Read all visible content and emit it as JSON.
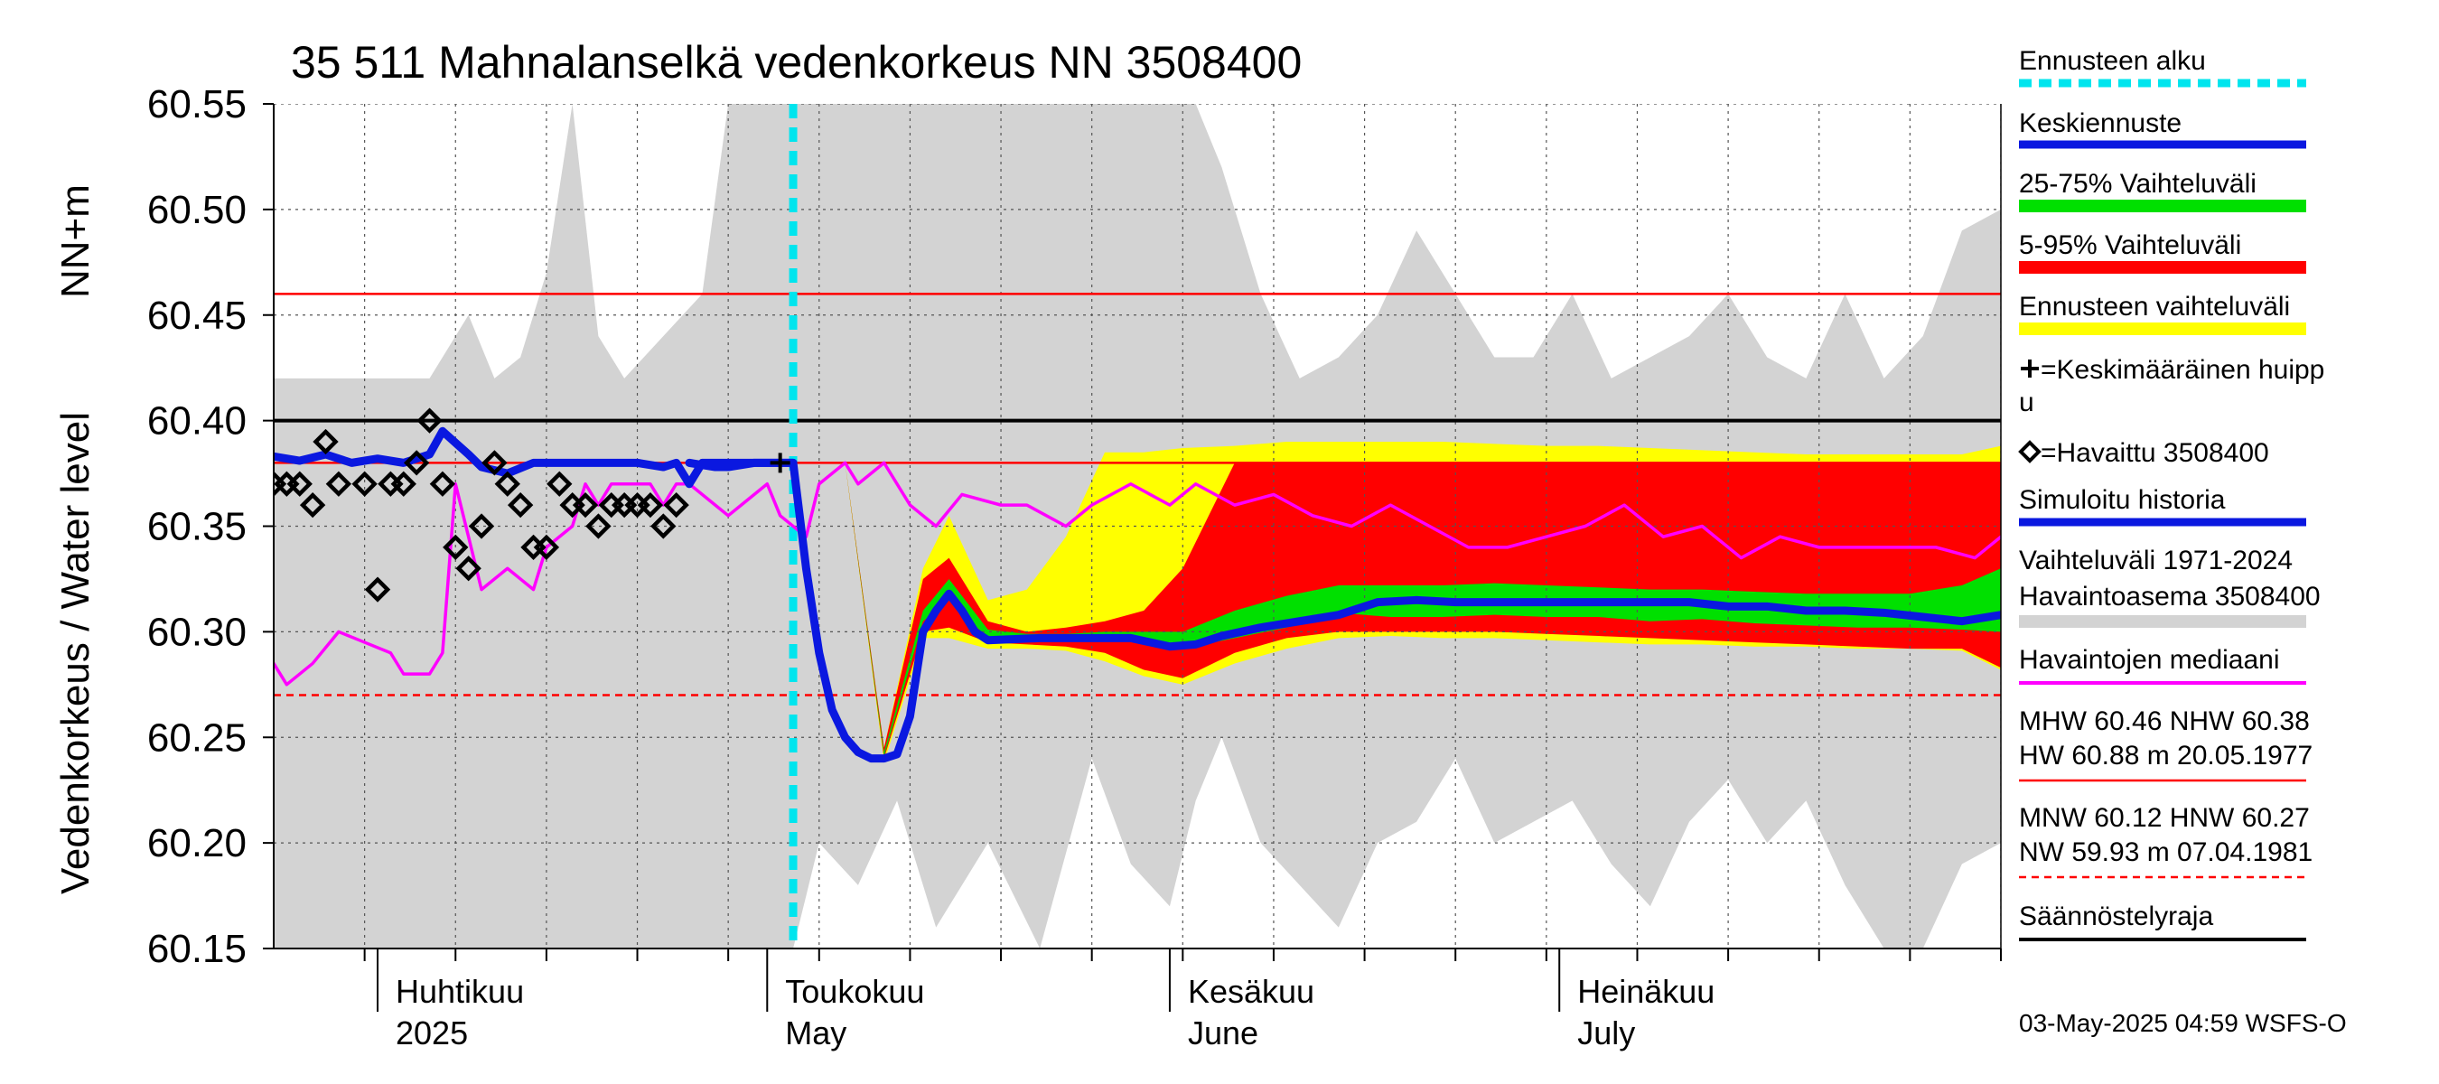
{
  "chart_data": {
    "type": "line",
    "title": "35 511 Mahnalanselkä vedenkorkeus NN 3508400",
    "ylabel_top": "NN+m",
    "ylabel": "Vedenkorkeus / Water level",
    "ylim": [
      60.15,
      60.55
    ],
    "yticks": [
      "60.15",
      "60.20",
      "60.25",
      "60.30",
      "60.35",
      "60.40",
      "60.45",
      "60.50",
      "60.55"
    ],
    "grid": true,
    "x_start": "2025-03-24",
    "x_end": "2025-08-04",
    "x_ticks_weekly": [
      "2025-03-31",
      "2025-04-07",
      "2025-04-14",
      "2025-04-21",
      "2025-04-28",
      "2025-05-05",
      "2025-05-12",
      "2025-05-19",
      "2025-05-26",
      "2025-06-02",
      "2025-06-09",
      "2025-06-16",
      "2025-06-23",
      "2025-06-30",
      "2025-07-07",
      "2025-07-14",
      "2025-07-21",
      "2025-07-28",
      "2025-08-04"
    ],
    "month_labels": [
      {
        "date": "2025-04-01",
        "fi": "Huhtikuu",
        "en": "2025"
      },
      {
        "date": "2025-05-01",
        "fi": "Toukokuu",
        "en": "May"
      },
      {
        "date": "2025-06-01",
        "fi": "Kesäkuu",
        "en": "June"
      },
      {
        "date": "2025-07-01",
        "fi": "Heinäkuu",
        "en": "July"
      }
    ],
    "forecast_start": "2025-05-03",
    "reference_lines": [
      {
        "name": "MHW",
        "value": 60.46,
        "style": "red-solid"
      },
      {
        "name": "NHW",
        "value": 60.38,
        "style": "red-solid"
      },
      {
        "name": "HNW",
        "value": 60.27,
        "style": "red-dashed"
      },
      {
        "name": "Säännöstelyraja",
        "value": 60.4,
        "style": "black-solid"
      }
    ],
    "historical_range": {
      "x": [
        "2025-03-24",
        "2025-03-31",
        "2025-04-05",
        "2025-04-08",
        "2025-04-10",
        "2025-04-12",
        "2025-04-14",
        "2025-04-16",
        "2025-04-18",
        "2025-04-20",
        "2025-04-23",
        "2025-04-26",
        "2025-04-28",
        "2025-05-01",
        "2025-05-03",
        "2025-05-05",
        "2025-05-08",
        "2025-05-11",
        "2025-05-14",
        "2025-05-18",
        "2025-05-22",
        "2025-05-26",
        "2025-05-29",
        "2025-06-01",
        "2025-06-03",
        "2025-06-05",
        "2025-06-08",
        "2025-06-11",
        "2025-06-14",
        "2025-06-17",
        "2025-06-20",
        "2025-06-23",
        "2025-06-26",
        "2025-06-29",
        "2025-07-02",
        "2025-07-05",
        "2025-07-08",
        "2025-07-11",
        "2025-07-14",
        "2025-07-17",
        "2025-07-20",
        "2025-07-23",
        "2025-07-26",
        "2025-07-29",
        "2025-08-01",
        "2025-08-04"
      ],
      "high": [
        60.42,
        60.42,
        60.42,
        60.45,
        60.42,
        60.43,
        60.47,
        60.55,
        60.44,
        60.42,
        60.44,
        60.46,
        60.55,
        60.55,
        60.55,
        60.55,
        60.55,
        60.55,
        60.55,
        60.55,
        60.55,
        60.55,
        60.55,
        60.55,
        60.55,
        60.52,
        60.46,
        60.42,
        60.43,
        60.45,
        60.49,
        60.46,
        60.43,
        60.43,
        60.46,
        60.42,
        60.43,
        60.44,
        60.46,
        60.43,
        60.42,
        60.46,
        60.42,
        60.44,
        60.49,
        60.5
      ],
      "low": [
        60.15,
        60.15,
        60.15,
        60.15,
        60.15,
        60.15,
        60.15,
        60.15,
        60.15,
        60.15,
        60.15,
        60.15,
        60.15,
        60.15,
        60.15,
        60.2,
        60.18,
        60.22,
        60.16,
        60.2,
        60.15,
        60.24,
        60.19,
        60.17,
        60.22,
        60.25,
        60.2,
        60.18,
        60.16,
        60.2,
        60.21,
        60.24,
        60.2,
        60.21,
        60.22,
        60.19,
        60.17,
        60.21,
        60.23,
        60.2,
        60.22,
        60.18,
        60.15,
        60.15,
        60.19,
        60.2
      ]
    },
    "forecast_range": {
      "x": [
        "2025-05-03",
        "2025-05-07",
        "2025-05-10",
        "2025-05-13",
        "2025-05-15",
        "2025-05-18",
        "2025-05-21",
        "2025-05-24",
        "2025-05-27",
        "2025-05-30",
        "2025-06-02",
        "2025-06-06",
        "2025-06-10",
        "2025-06-14",
        "2025-06-18",
        "2025-06-22",
        "2025-06-26",
        "2025-06-30",
        "2025-07-04",
        "2025-07-08",
        "2025-07-12",
        "2025-07-16",
        "2025-07-20",
        "2025-07-24",
        "2025-07-28",
        "2025-08-01",
        "2025-08-04"
      ],
      "p0_high": [
        60.38,
        60.38,
        60.245,
        60.33,
        60.355,
        60.315,
        60.32,
        60.345,
        60.385,
        60.385,
        60.387,
        60.388,
        60.39,
        60.39,
        60.39,
        60.39,
        60.389,
        60.388,
        60.388,
        60.387,
        60.386,
        60.385,
        60.384,
        60.384,
        60.384,
        60.384,
        60.388
      ],
      "p5_high": [
        60.38,
        60.38,
        60.245,
        60.325,
        60.335,
        60.305,
        60.3,
        60.302,
        60.305,
        60.31,
        60.33,
        60.38,
        60.38,
        60.38,
        60.38,
        60.38,
        60.38,
        60.38,
        60.38,
        60.38,
        60.38,
        60.38,
        60.38,
        60.38,
        60.38,
        60.38,
        60.38
      ],
      "p25_high": [
        60.38,
        60.38,
        60.243,
        60.31,
        60.325,
        60.301,
        60.299,
        60.299,
        60.3,
        60.3,
        60.3,
        60.31,
        60.317,
        60.322,
        60.322,
        60.322,
        60.323,
        60.322,
        60.321,
        60.32,
        60.32,
        60.319,
        60.318,
        60.318,
        60.318,
        60.322,
        60.33
      ],
      "p25_low": [
        60.38,
        60.38,
        60.241,
        60.305,
        60.315,
        60.297,
        60.296,
        60.296,
        60.296,
        60.295,
        60.292,
        60.297,
        60.302,
        60.309,
        60.307,
        60.307,
        60.308,
        60.307,
        60.307,
        60.305,
        60.306,
        60.304,
        60.303,
        60.302,
        60.302,
        60.301,
        60.3
      ],
      "p5_low": [
        60.38,
        60.38,
        60.24,
        60.3,
        60.302,
        60.295,
        60.294,
        60.293,
        60.29,
        60.282,
        60.278,
        60.29,
        60.297,
        60.3,
        60.3,
        60.3,
        60.3,
        60.299,
        60.298,
        60.297,
        60.296,
        60.295,
        60.294,
        60.293,
        60.292,
        60.292,
        60.283
      ],
      "p0_low": [
        60.38,
        60.38,
        60.238,
        60.297,
        60.297,
        60.292,
        60.292,
        60.291,
        60.286,
        60.279,
        60.275,
        60.285,
        60.292,
        60.297,
        60.298,
        60.297,
        60.297,
        60.296,
        60.295,
        60.294,
        60.294,
        60.293,
        60.293,
        60.292,
        60.292,
        60.291,
        60.282
      ]
    },
    "median_forecast": {
      "x": [
        "2025-04-25",
        "2025-04-27",
        "2025-04-28",
        "2025-04-30",
        "2025-05-02",
        "2025-05-03",
        "2025-05-04",
        "2025-05-05",
        "2025-05-06",
        "2025-05-07",
        "2025-05-08",
        "2025-05-09",
        "2025-05-10",
        "2025-05-11",
        "2025-05-12",
        "2025-05-13",
        "2025-05-14",
        "2025-05-15",
        "2025-05-16",
        "2025-05-17",
        "2025-05-18",
        "2025-05-22",
        "2025-05-26",
        "2025-05-29",
        "2025-06-01",
        "2025-06-03",
        "2025-06-05",
        "2025-06-08",
        "2025-06-11",
        "2025-06-14",
        "2025-06-17",
        "2025-06-20",
        "2025-06-23",
        "2025-06-26",
        "2025-06-29",
        "2025-07-02",
        "2025-07-05",
        "2025-07-08",
        "2025-07-11",
        "2025-07-14",
        "2025-07-17",
        "2025-07-20",
        "2025-07-23",
        "2025-07-26",
        "2025-07-29",
        "2025-08-01",
        "2025-08-04"
      ],
      "y": [
        60.38,
        60.378,
        60.378,
        60.38,
        60.38,
        60.38,
        60.33,
        60.29,
        60.263,
        60.25,
        60.243,
        60.24,
        60.24,
        60.242,
        60.26,
        60.3,
        60.31,
        60.318,
        60.31,
        60.3,
        60.296,
        60.297,
        60.297,
        60.297,
        60.293,
        60.294,
        60.298,
        60.302,
        60.305,
        60.308,
        60.314,
        60.315,
        60.314,
        60.314,
        60.314,
        60.314,
        60.314,
        60.314,
        60.314,
        60.312,
        60.312,
        60.31,
        60.31,
        60.309,
        60.307,
        60.305,
        60.308
      ]
    },
    "simulated_history": {
      "x": [
        "2025-03-24",
        "2025-03-26",
        "2025-03-28",
        "2025-03-30",
        "2025-04-01",
        "2025-04-03",
        "2025-04-05",
        "2025-04-06",
        "2025-04-08",
        "2025-04-09",
        "2025-04-11",
        "2025-04-13",
        "2025-04-15",
        "2025-04-17",
        "2025-04-19",
        "2025-04-21",
        "2025-04-23",
        "2025-04-24",
        "2025-04-25",
        "2025-04-26",
        "2025-04-28",
        "2025-04-30",
        "2025-05-03"
      ],
      "y": [
        60.383,
        60.381,
        60.384,
        60.38,
        60.382,
        60.38,
        60.384,
        60.395,
        60.384,
        60.378,
        60.375,
        60.38,
        60.38,
        60.38,
        60.38,
        60.38,
        60.378,
        60.38,
        60.37,
        60.38,
        60.38,
        60.38,
        60.38
      ]
    },
    "observed_median": {
      "x": [
        "2025-03-24",
        "2025-03-25",
        "2025-03-27",
        "2025-03-29",
        "2025-03-31",
        "2025-04-02",
        "2025-04-03",
        "2025-04-05",
        "2025-04-06",
        "2025-04-07",
        "2025-04-09",
        "2025-04-11",
        "2025-04-12",
        "2025-04-13",
        "2025-04-14",
        "2025-04-16",
        "2025-04-17",
        "2025-04-18",
        "2025-04-19",
        "2025-04-21",
        "2025-04-22",
        "2025-04-23",
        "2025-04-24",
        "2025-04-25",
        "2025-04-27",
        "2025-04-28",
        "2025-04-29",
        "2025-05-01",
        "2025-05-02",
        "2025-05-04",
        "2025-05-05",
        "2025-05-07",
        "2025-05-08",
        "2025-05-10",
        "2025-05-12",
        "2025-05-14",
        "2025-05-16",
        "2025-05-19",
        "2025-05-21",
        "2025-05-24",
        "2025-05-26",
        "2025-05-29",
        "2025-06-01",
        "2025-06-03",
        "2025-06-06",
        "2025-06-09",
        "2025-06-12",
        "2025-06-15",
        "2025-06-18",
        "2025-06-21",
        "2025-06-24",
        "2025-06-27",
        "2025-06-30",
        "2025-07-03",
        "2025-07-06",
        "2025-07-09",
        "2025-07-12",
        "2025-07-15",
        "2025-07-18",
        "2025-07-21",
        "2025-07-24",
        "2025-07-27",
        "2025-07-30",
        "2025-08-02",
        "2025-08-04"
      ],
      "y": [
        60.285,
        60.275,
        60.285,
        60.3,
        60.295,
        60.29,
        60.28,
        60.28,
        60.29,
        60.37,
        60.32,
        60.33,
        60.325,
        60.32,
        60.34,
        60.35,
        60.37,
        60.36,
        60.37,
        60.37,
        60.37,
        60.36,
        60.37,
        60.37,
        60.36,
        60.355,
        60.36,
        60.37,
        60.355,
        60.345,
        60.37,
        60.38,
        60.37,
        60.38,
        60.36,
        60.35,
        60.365,
        60.36,
        60.36,
        60.35,
        60.36,
        60.37,
        60.36,
        60.37,
        60.36,
        60.365,
        60.355,
        60.35,
        60.36,
        60.35,
        60.34,
        60.34,
        60.345,
        60.35,
        60.36,
        60.345,
        60.35,
        60.335,
        60.345,
        60.34,
        60.34,
        60.34,
        60.34,
        60.335,
        60.345
      ]
    },
    "observed": {
      "x": [
        "2025-03-24",
        "2025-03-25",
        "2025-03-26",
        "2025-03-27",
        "2025-03-28",
        "2025-03-29",
        "2025-03-31",
        "2025-04-01",
        "2025-04-02",
        "2025-04-03",
        "2025-04-04",
        "2025-04-05",
        "2025-04-06",
        "2025-04-07",
        "2025-04-08",
        "2025-04-09",
        "2025-04-10",
        "2025-04-11",
        "2025-04-12",
        "2025-04-13",
        "2025-04-14",
        "2025-04-15",
        "2025-04-16",
        "2025-04-17",
        "2025-04-18",
        "2025-04-19",
        "2025-04-20",
        "2025-04-21",
        "2025-04-22",
        "2025-04-23",
        "2025-04-24"
      ],
      "y": [
        60.37,
        60.37,
        60.37,
        60.36,
        60.39,
        60.37,
        60.37,
        60.32,
        60.37,
        60.37,
        60.38,
        60.4,
        60.37,
        60.34,
        60.33,
        60.35,
        60.38,
        60.37,
        60.36,
        60.34,
        60.34,
        60.37,
        60.36,
        60.36,
        60.35,
        60.36,
        60.36,
        60.36,
        60.36,
        60.35,
        60.36
      ]
    },
    "mean_peak": {
      "x": "2025-05-02",
      "y": 60.38
    },
    "legend": {
      "placement": "right",
      "items": [
        {
          "key": "forecast_start",
          "label": "Ennusteen alku",
          "color": "#00e5ee"
        },
        {
          "key": "median_forecast",
          "label": "Keskiennuste",
          "color": "#0a18e0"
        },
        {
          "key": "p25_75",
          "label": "25-75% Vaihteluväli",
          "color": "#00e000"
        },
        {
          "key": "p5_95",
          "label": "5-95% Vaihteluväli",
          "color": "#ff0000"
        },
        {
          "key": "forecast_range",
          "label": "Ennusteen vaihteluväli",
          "color": "#ffff00"
        },
        {
          "key": "mean_peak",
          "label": "=Keskimääräinen huipp",
          "label2": "u"
        },
        {
          "key": "observed",
          "label": "=Havaittu 3508400"
        },
        {
          "key": "simulated_history",
          "label": "Simuloitu historia",
          "color": "#0a18e0"
        },
        {
          "key": "historical_range",
          "label": "Vaihteluväli 1971-2024",
          "label2": " Havaintoasema 3508400",
          "color": "#d3d3d3"
        },
        {
          "key": "observed_median",
          "label": "Havaintojen mediaani",
          "color": "#ff00ff"
        }
      ],
      "stats_high": {
        "line1": "MHW  60.46 NHW  60.38",
        "line2": "HW  60.88 m 20.05.1977"
      },
      "stats_low": {
        "line1": "MNW  60.12 HNW  60.27",
        "line2": "NW  59.93 m 07.04.1981"
      },
      "regulation": "Säännöstelyraja"
    },
    "timestamp": "03-May-2025 04:59 WSFS-O"
  }
}
